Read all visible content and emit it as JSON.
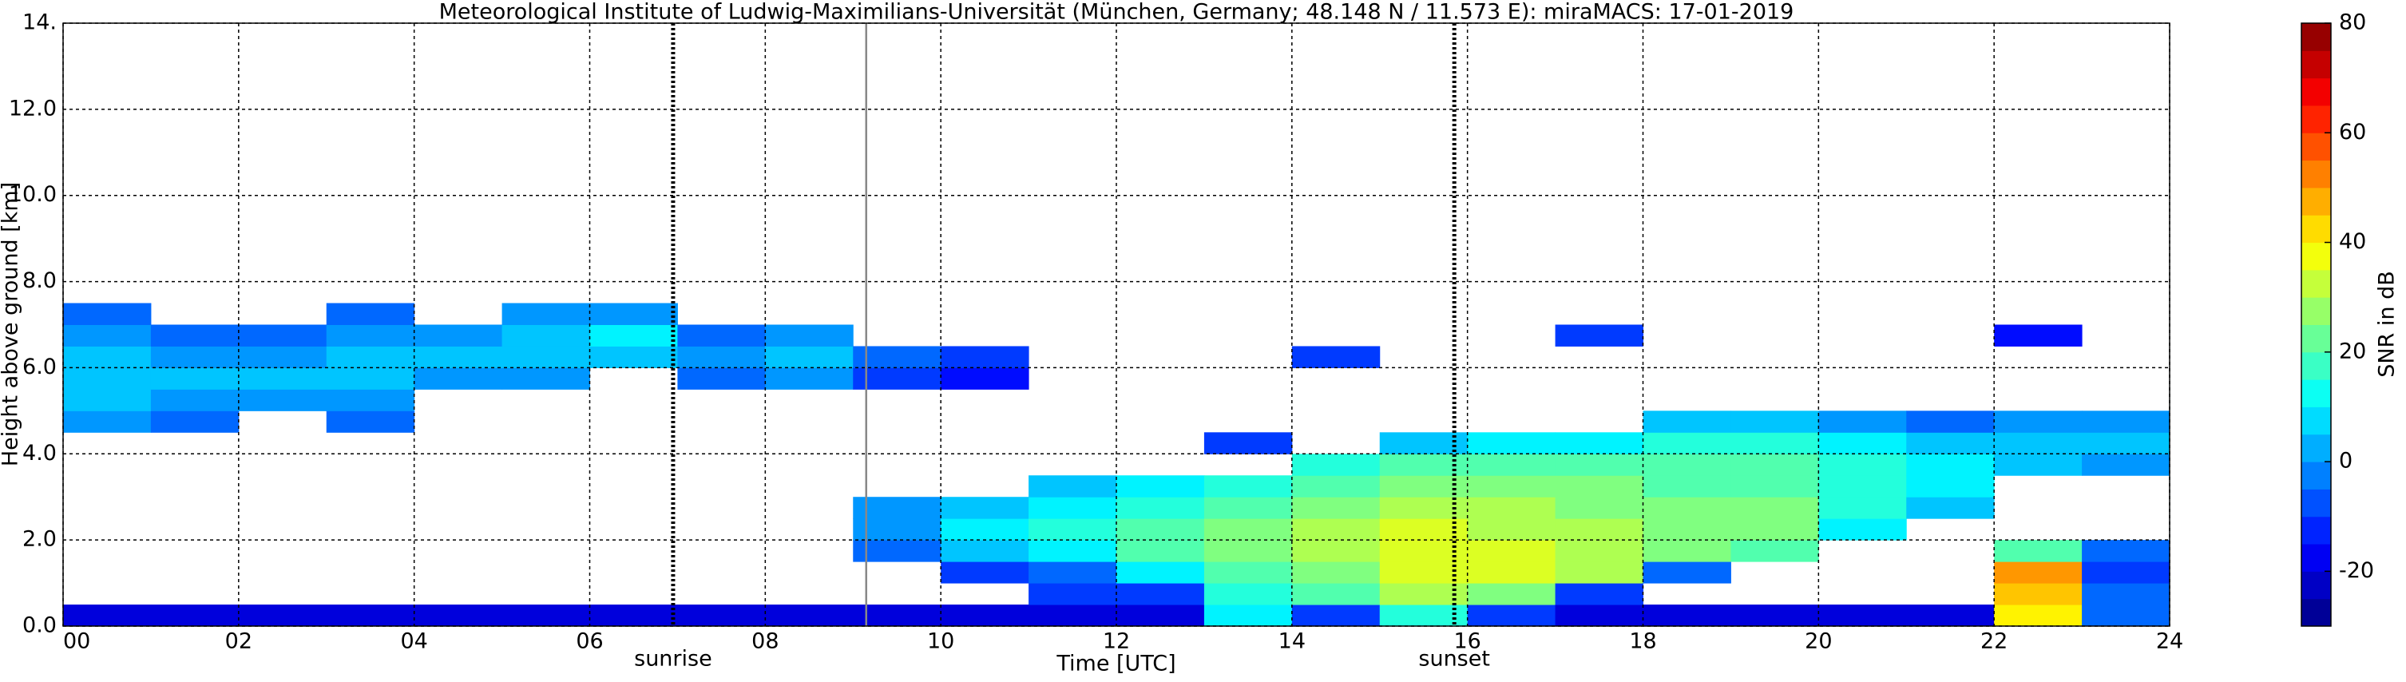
{
  "chart_data": {
    "type": "heatmap",
    "title": "Meteorological Institute of Ludwig-Maximilians-Universität (München, Germany; 48.148 N / 11.573 E):    miraMACS: 17-01-2019",
    "x_label": "Time [UTC]",
    "y_label": "Height above ground [km]",
    "colorbar_label": "SNR in dB",
    "colormap": "jet",
    "grid": true,
    "xlim": [
      0,
      24
    ],
    "ylim": [
      0,
      14
    ],
    "zlim": [
      -30,
      80
    ],
    "xticks": [
      {
        "value": 0,
        "label": "00"
      },
      {
        "value": 2,
        "label": "02"
      },
      {
        "value": 4,
        "label": "04"
      },
      {
        "value": 6,
        "label": "06"
      },
      {
        "value": 8,
        "label": "08"
      },
      {
        "value": 10,
        "label": "10"
      },
      {
        "value": 12,
        "label": "12"
      },
      {
        "value": 14,
        "label": "14"
      },
      {
        "value": 16,
        "label": "16"
      },
      {
        "value": 18,
        "label": "18"
      },
      {
        "value": 20,
        "label": "20"
      },
      {
        "value": 22,
        "label": "22"
      },
      {
        "value": 24,
        "label": "24"
      }
    ],
    "yticks": [
      {
        "value": 0,
        "label": "0.0"
      },
      {
        "value": 2,
        "label": "2.0"
      },
      {
        "value": 4,
        "label": "4.0"
      },
      {
        "value": 6,
        "label": "6.0"
      },
      {
        "value": 8,
        "label": "8.0"
      },
      {
        "value": 10,
        "label": "10.0"
      },
      {
        "value": 12,
        "label": "12.0"
      },
      {
        "value": 14,
        "label": "14."
      }
    ],
    "zticks": [
      -20,
      0,
      20,
      40,
      60,
      80
    ],
    "markers": [
      {
        "label": "sunrise",
        "x": 6.95
      },
      {
        "label": "sunset",
        "x": 15.85
      }
    ],
    "reference_line_x": 9.15,
    "xbins": [
      0,
      1,
      2,
      3,
      4,
      5,
      6,
      7,
      8,
      9,
      10,
      11,
      12,
      13,
      14,
      15,
      16,
      17,
      18,
      19,
      20,
      21,
      22,
      23,
      24
    ],
    "ybins": [
      0,
      0.5,
      1,
      1.5,
      2,
      2.5,
      3,
      3.5,
      4,
      4.5,
      5,
      5.5,
      6,
      6.5,
      7,
      7.5,
      8
    ],
    "z": [
      [
        -20,
        null,
        null,
        null,
        null,
        null,
        null,
        null,
        null,
        0,
        5,
        5,
        5,
        0,
        -5,
        null
      ],
      [
        -20,
        null,
        null,
        null,
        null,
        null,
        null,
        null,
        null,
        -5,
        0,
        5,
        0,
        -5,
        null,
        null
      ],
      [
        -20,
        null,
        null,
        null,
        null,
        null,
        null,
        null,
        null,
        null,
        0,
        5,
        0,
        -5,
        null,
        null
      ],
      [
        -20,
        null,
        null,
        null,
        null,
        null,
        null,
        null,
        null,
        -5,
        0,
        5,
        5,
        0,
        -5,
        null
      ],
      [
        -20,
        null,
        null,
        null,
        null,
        null,
        null,
        null,
        null,
        null,
        null,
        0,
        5,
        0,
        null,
        null
      ],
      [
        -20,
        null,
        null,
        null,
        null,
        null,
        null,
        null,
        null,
        null,
        null,
        0,
        5,
        5,
        0,
        null
      ],
      [
        -20,
        null,
        null,
        null,
        null,
        null,
        null,
        null,
        null,
        null,
        null,
        null,
        5,
        10,
        0,
        null
      ],
      [
        -20,
        null,
        null,
        null,
        null,
        null,
        null,
        null,
        null,
        null,
        null,
        -5,
        0,
        -5,
        null,
        null
      ],
      [
        -20,
        null,
        null,
        null,
        null,
        null,
        null,
        null,
        null,
        null,
        null,
        0,
        5,
        0,
        null,
        null
      ],
      [
        -20,
        null,
        null,
        -5,
        0,
        0,
        null,
        null,
        null,
        null,
        null,
        -10,
        -5,
        null,
        null,
        null
      ],
      [
        -20,
        null,
        -10,
        5,
        10,
        5,
        null,
        null,
        null,
        null,
        null,
        -15,
        -10,
        null,
        null,
        null
      ],
      [
        -20,
        -10,
        -5,
        10,
        15,
        10,
        5,
        null,
        null,
        null,
        null,
        null,
        null,
        null,
        null,
        null
      ],
      [
        -20,
        -10,
        10,
        20,
        20,
        15,
        10,
        null,
        null,
        null,
        null,
        null,
        null,
        null,
        null,
        null
      ],
      [
        10,
        15,
        20,
        25,
        25,
        20,
        15,
        null,
        -10,
        null,
        null,
        null,
        null,
        null,
        null,
        null
      ],
      [
        -10,
        20,
        25,
        30,
        30,
        25,
        20,
        15,
        null,
        null,
        null,
        null,
        -10,
        null,
        null,
        null
      ],
      [
        15,
        30,
        35,
        35,
        35,
        30,
        25,
        20,
        5,
        null,
        null,
        null,
        null,
        null,
        null,
        null
      ],
      [
        -10,
        25,
        35,
        35,
        30,
        30,
        25,
        20,
        10,
        null,
        null,
        null,
        null,
        null,
        null,
        null
      ],
      [
        -20,
        -10,
        30,
        30,
        30,
        25,
        25,
        20,
        10,
        null,
        null,
        null,
        null,
        -10,
        null,
        null
      ],
      [
        -20,
        null,
        -5,
        25,
        25,
        25,
        20,
        20,
        15,
        5,
        null,
        null,
        null,
        null,
        null,
        null
      ],
      [
        -20,
        null,
        null,
        20,
        25,
        25,
        20,
        20,
        15,
        5,
        null,
        null,
        null,
        null,
        null,
        null
      ],
      [
        -20,
        null,
        null,
        null,
        10,
        15,
        15,
        15,
        10,
        0,
        null,
        null,
        null,
        null,
        null,
        null
      ],
      [
        -20,
        null,
        null,
        null,
        null,
        5,
        10,
        10,
        5,
        -5,
        null,
        null,
        null,
        null,
        null,
        null
      ],
      [
        40,
        45,
        50,
        20,
        null,
        null,
        null,
        5,
        5,
        0,
        null,
        null,
        null,
        -15,
        null,
        null
      ],
      [
        -5,
        -5,
        -10,
        -5,
        null,
        null,
        null,
        0,
        5,
        0,
        null,
        null,
        null,
        null,
        null,
        null
      ]
    ]
  }
}
